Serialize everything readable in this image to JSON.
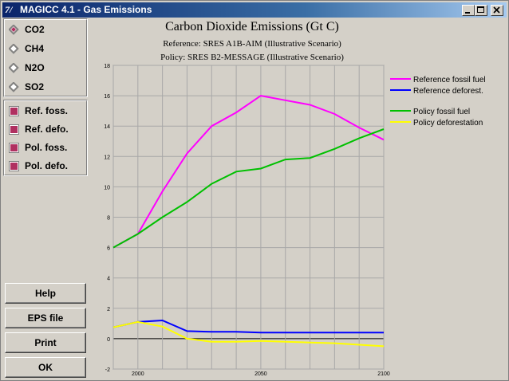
{
  "window": {
    "icon_text": "7/",
    "title": "MAGICC 4.1 - Gas Emissions"
  },
  "gas_options": [
    {
      "label": "CO2",
      "selected": true
    },
    {
      "label": "CH4",
      "selected": false
    },
    {
      "label": "N2O",
      "selected": false
    },
    {
      "label": "SO2",
      "selected": false
    }
  ],
  "series_toggles": [
    {
      "label": "Ref. foss.",
      "checked": true
    },
    {
      "label": "Ref. defo.",
      "checked": true
    },
    {
      "label": "Pol. foss.",
      "checked": true
    },
    {
      "label": "Pol. defo.",
      "checked": true
    }
  ],
  "buttons": {
    "help": "Help",
    "eps": "EPS file",
    "print": "Print",
    "ok": "OK"
  },
  "chart_data": {
    "type": "line",
    "title": "Carbon Dioxide Emissions (Gt C)",
    "subtitle_reference": "Reference: SRES A1B-AIM (Illustrative Scenario)",
    "subtitle_policy": "Policy: SRES B2-MESSAGE (Illustrative Scenario)",
    "xlim": [
      1990,
      2100
    ],
    "ylim": [
      -2,
      18
    ],
    "x_ticks": [
      "2000",
      "2050",
      "2100"
    ],
    "y_ticks": [
      "-2",
      "0",
      "2",
      "4",
      "6",
      "8",
      "10",
      "12",
      "14",
      "16",
      "18"
    ],
    "grid": true,
    "legend_position": "right",
    "series": [
      {
        "name": "Reference fossil fuel",
        "color": "#ff00ff",
        "x": [
          1990,
          2000,
          2010,
          2020,
          2030,
          2040,
          2050,
          2060,
          2070,
          2080,
          2090,
          2100
        ],
        "y": [
          6.0,
          6.9,
          9.7,
          12.2,
          14.0,
          14.9,
          16.0,
          15.7,
          15.4,
          14.8,
          13.9,
          13.1
        ]
      },
      {
        "name": "Reference deforest.",
        "color": "#0000ff",
        "x": [
          1990,
          2000,
          2010,
          2020,
          2030,
          2040,
          2050,
          2060,
          2070,
          2080,
          2090,
          2100
        ],
        "y": [
          0.75,
          1.1,
          1.2,
          0.5,
          0.45,
          0.45,
          0.4,
          0.4,
          0.4,
          0.4,
          0.4,
          0.4
        ]
      },
      {
        "name": "Policy fossil fuel",
        "color": "#00c000",
        "x": [
          1990,
          2000,
          2010,
          2020,
          2030,
          2040,
          2050,
          2060,
          2070,
          2080,
          2090,
          2100
        ],
        "y": [
          6.0,
          6.9,
          8.0,
          9.0,
          10.2,
          11.0,
          11.2,
          11.8,
          11.9,
          12.5,
          13.2,
          13.8
        ]
      },
      {
        "name": "Policy deforestation",
        "color": "#ffff00",
        "x": [
          1990,
          2000,
          2010,
          2020,
          2030,
          2040,
          2050,
          2060,
          2070,
          2080,
          2090,
          2100
        ],
        "y": [
          0.75,
          1.1,
          0.8,
          0.0,
          -0.2,
          -0.2,
          -0.15,
          -0.2,
          -0.25,
          -0.3,
          -0.4,
          -0.5
        ]
      }
    ],
    "legend_groups": [
      [
        0,
        1
      ],
      [
        2,
        3
      ]
    ]
  }
}
